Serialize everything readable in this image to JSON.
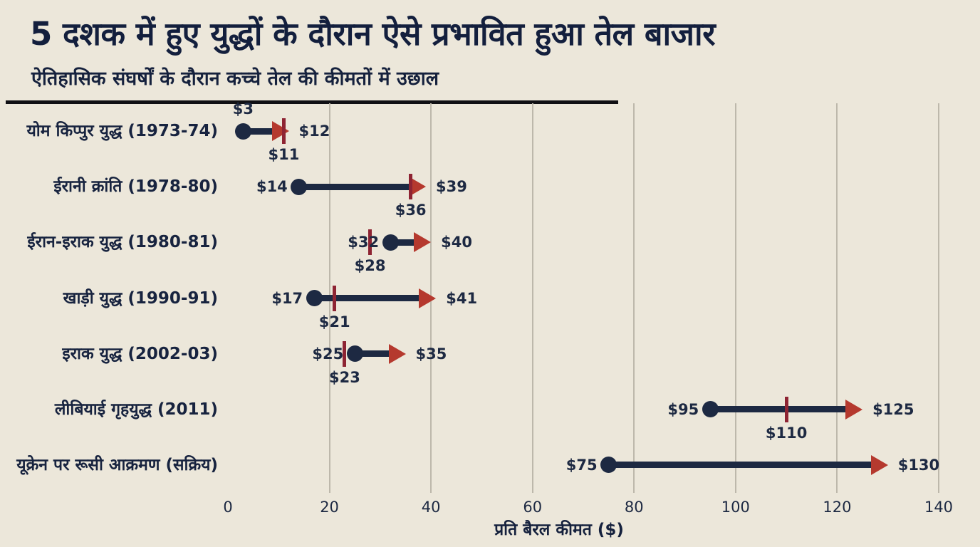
{
  "header": {
    "title": "5 दशक में हुए युद्धों के दौरान ऐसे प्रभावित हुआ तेल बाजार",
    "subtitle": "ऐतिहासिक संघर्षों के दौरान कच्चे तेल की कीमतों में उछाल"
  },
  "chart_data": {
    "type": "dumbbell-arrow",
    "title": "5 दशक में हुए युद्धों के दौरान ऐसे प्रभावित हुआ तेल बाजार",
    "subtitle": "ऐतिहासिक संघर्षों के दौरान कच्चे तेल की कीमतों में उछाल",
    "xlabel": "प्रति बैरल कीमत ($)",
    "xlim": [
      0,
      140
    ],
    "x_ticks": [
      0,
      20,
      40,
      60,
      80,
      100,
      120,
      140
    ],
    "grid": true,
    "legend": false,
    "colors": {
      "background": "#ece7da",
      "navy": "#1d2942",
      "tick_red": "#8e2433",
      "arrow_red": "#b5392e",
      "gridline": "#bdb8ab"
    },
    "rows": [
      {
        "label": "योम किप्पुर युद्ध (1973-74)",
        "start": 3,
        "mid": 11,
        "end": 12,
        "start_label": "$3",
        "mid_label": "$11",
        "end_label": "$12",
        "start_label_pos": "above"
      },
      {
        "label": "ईरानी क्रांति (1978-80)",
        "start": 14,
        "mid": 36,
        "end": 39,
        "start_label": "$14",
        "mid_label": "$36",
        "end_label": "$39",
        "start_label_pos": "left"
      },
      {
        "label": "ईरान-इराक युद्ध (1980-81)",
        "start": 32,
        "mid": 28,
        "end": 40,
        "start_label": "$32",
        "mid_label": "$28",
        "end_label": "$40",
        "start_label_pos": "left"
      },
      {
        "label": "खाड़ी युद्ध (1990-91)",
        "start": 17,
        "mid": 21,
        "end": 41,
        "start_label": "$17",
        "mid_label": "$21",
        "end_label": "$41",
        "start_label_pos": "left"
      },
      {
        "label": "इराक युद्ध (2002-03)",
        "start": 25,
        "mid": 23,
        "end": 35,
        "start_label": "$25",
        "mid_label": "$23",
        "end_label": "$35",
        "start_label_pos": "left"
      },
      {
        "label": "लीबियाई गृहयुद्ध (2011)",
        "start": 95,
        "mid": 110,
        "end": 125,
        "start_label": "$95",
        "mid_label": "$110",
        "end_label": "$125",
        "start_label_pos": "left"
      },
      {
        "label": "यूक्रेन पर रूसी आक्रमण (सक्रिय)",
        "start": 75,
        "mid": null,
        "end": 130,
        "start_label": "$75",
        "mid_label": null,
        "end_label": "$130",
        "start_label_pos": "left"
      }
    ]
  }
}
